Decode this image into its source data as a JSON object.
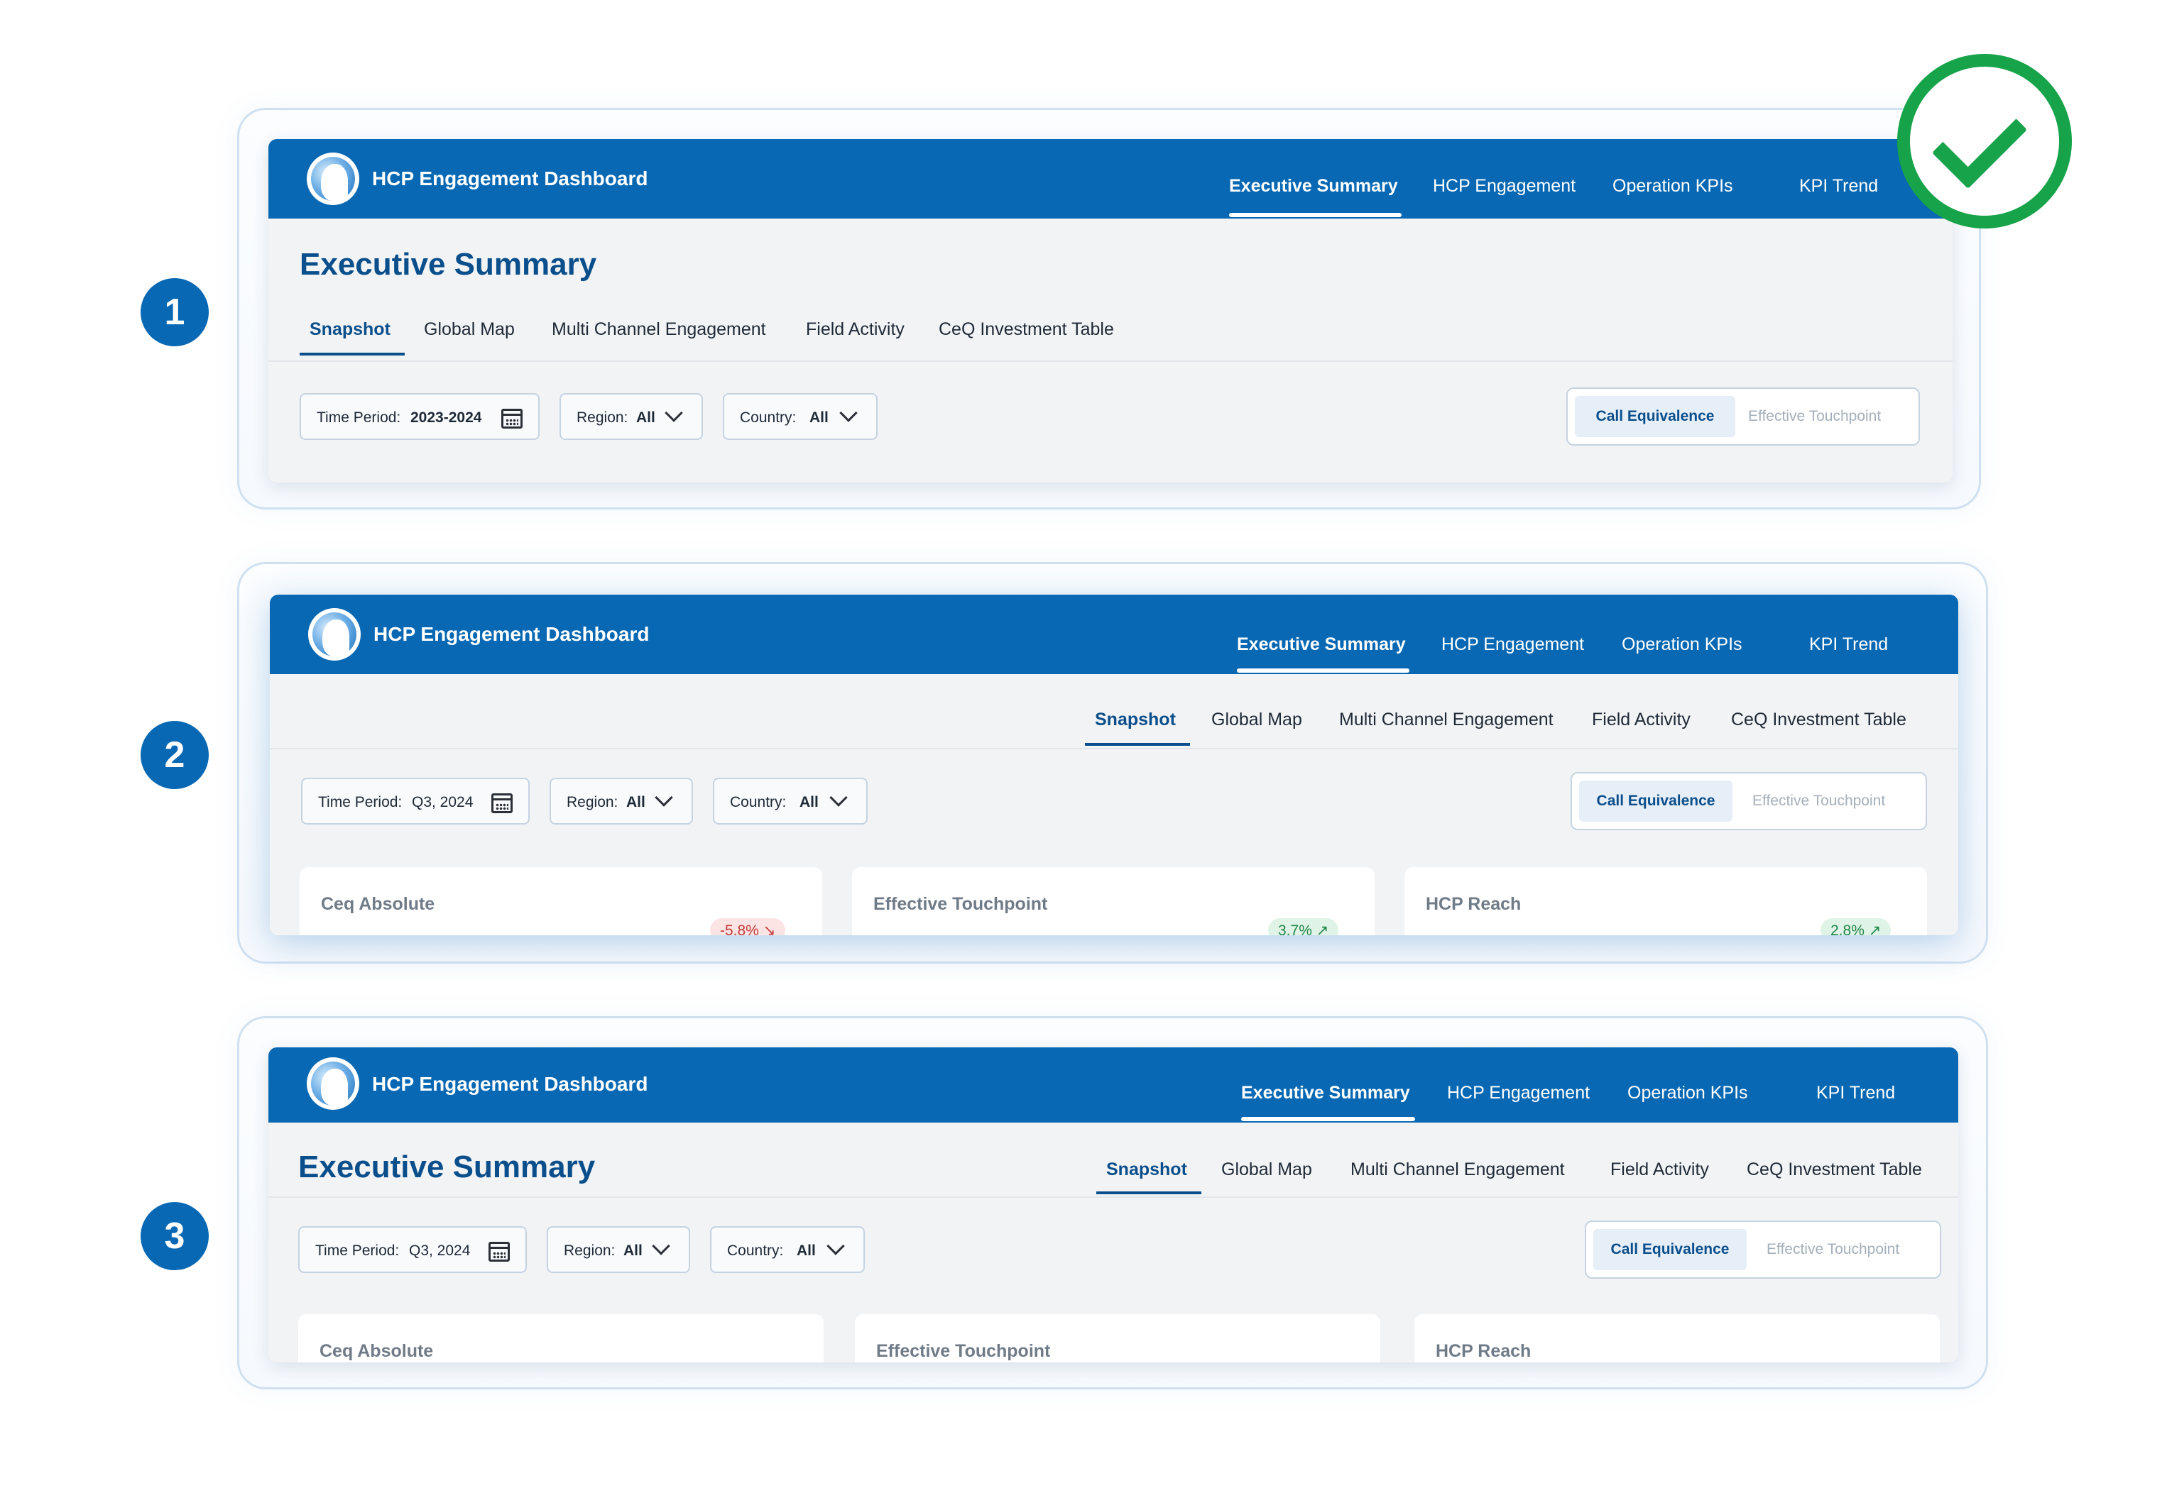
{
  "badges": [
    "1",
    "2",
    "3"
  ],
  "app_title": "HCP Engagement Dashboard",
  "top_nav": [
    "Executive Summary",
    "HCP Engagement",
    "Operation KPIs",
    "KPI Trend"
  ],
  "page_title": "Executive Summary",
  "sub_tabs": [
    "Snapshot",
    "Global Map",
    "Multi Channel Engagement",
    "Field Activity",
    "CeQ Investment Table"
  ],
  "filters": {
    "time_period_label": "Time Period:",
    "region_label": "Region:",
    "country_label": "Country:",
    "all_value": "All"
  },
  "time_period_values": [
    "2023-2024",
    "Q3, 2024",
    "Q3, 2024"
  ],
  "toggle": {
    "on": "Call Equivalence",
    "off": "Effective Touchpoint"
  },
  "cards": [
    {
      "title": "Ceq Absolute",
      "delta": "-5.8%",
      "trend": "down"
    },
    {
      "title": "Effective Touchpoint",
      "delta": "3.7%",
      "trend": "up"
    },
    {
      "title": "HCP Reach",
      "delta": "2.8%",
      "trend": "up"
    }
  ],
  "selected_option": "1",
  "colors": {
    "header": "#0868b3",
    "title": "#0a4f8c",
    "check": "#17a349"
  },
  "icons": [
    "logo-globe-icon",
    "calendar-icon",
    "chevron-down-icon",
    "check-icon",
    "trend-down-icon",
    "trend-up-icon"
  ]
}
